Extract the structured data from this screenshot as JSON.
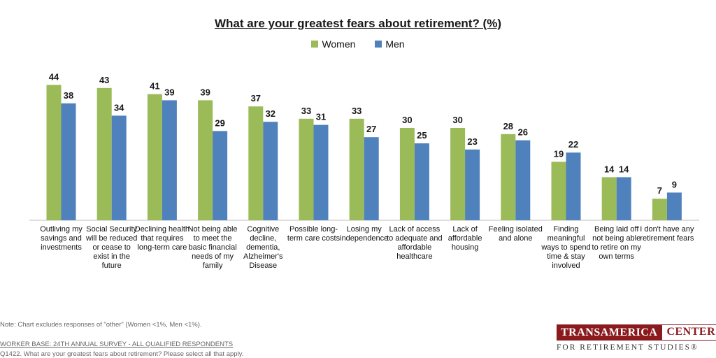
{
  "chart_data": {
    "type": "bar",
    "title": "What are your greatest fears about retirement? (%)",
    "categories": [
      "Outliving my savings and investments",
      "Social Security will be reduced or cease to exist in the future",
      "Declining health that requires long-term care",
      "Not being able to meet the basic financial needs of my family",
      "Cognitive decline, dementia, Alzheimer's Disease",
      "Possible long-term care costs",
      "Losing my independence",
      "Lack of access to adequate and affordable healthcare",
      "Lack of affordable housing",
      "Feeling isolated and alone",
      "Finding meaningful ways to spend time & stay involved",
      "Being laid off not being able to retire on my own terms",
      "I don't have any retirement fears"
    ],
    "series": [
      {
        "name": "Women",
        "color": "#9bbb59",
        "values": [
          44,
          43,
          41,
          39,
          37,
          33,
          33,
          30,
          30,
          28,
          19,
          14,
          7
        ]
      },
      {
        "name": "Men",
        "color": "#4f81bd",
        "values": [
          38,
          34,
          39,
          29,
          32,
          31,
          27,
          25,
          23,
          26,
          22,
          14,
          9
        ]
      }
    ],
    "ylim": [
      0,
      50
    ],
    "xlabel": "",
    "ylabel": "",
    "grid": false,
    "legend_position": "top-center",
    "data_labels": true
  },
  "footnotes": {
    "note": "Note: Chart excludes responses of \"other\" (Women <1%, Men <1%).",
    "worker_base": "WORKER BASE: 24TH ANNUAL SURVEY - ALL QUALIFIED RESPONDENTS",
    "question": "Q1422. What are your greatest fears about retirement? Please select all that apply."
  },
  "logo": {
    "name": "TRANSAMERICA",
    "word": "CENTER",
    "subtitle": "FOR RETIREMENT STUDIES",
    "mark": "®"
  }
}
